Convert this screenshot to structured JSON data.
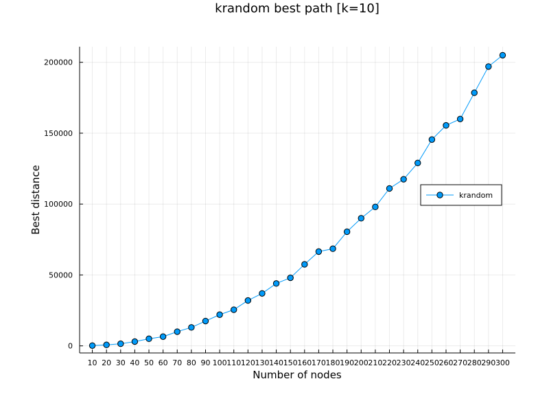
{
  "chart_data": {
    "type": "line",
    "title": "krandom best path [k=10]",
    "xlabel": "Number of nodes",
    "ylabel": "Best distance",
    "categories": [
      "10",
      "20",
      "30",
      "40",
      "50",
      "60",
      "70",
      "80",
      "90",
      "100",
      "110",
      "120",
      "130",
      "140",
      "150",
      "160",
      "170",
      "180",
      "190",
      "200",
      "210",
      "220",
      "230",
      "240",
      "250",
      "260",
      "270",
      "280",
      "290",
      "300"
    ],
    "series": [
      {
        "name": "krandom",
        "color": "#009af9",
        "marker": "circle",
        "values": [
          200,
          700,
          1500,
          3000,
          5000,
          6500,
          10000,
          13000,
          17500,
          22000,
          25500,
          32000,
          37000,
          44000,
          48000,
          57500,
          66500,
          68500,
          80500,
          90000,
          98000,
          111000,
          117500,
          129000,
          145500,
          155500,
          160000,
          178500,
          197000,
          205000
        ]
      }
    ],
    "yticks": [
      0,
      50000,
      100000,
      150000,
      200000
    ],
    "ylim": [
      -5000,
      211000
    ],
    "xlim": [
      1,
      309
    ],
    "grid": true,
    "legend_position": "right-center"
  }
}
